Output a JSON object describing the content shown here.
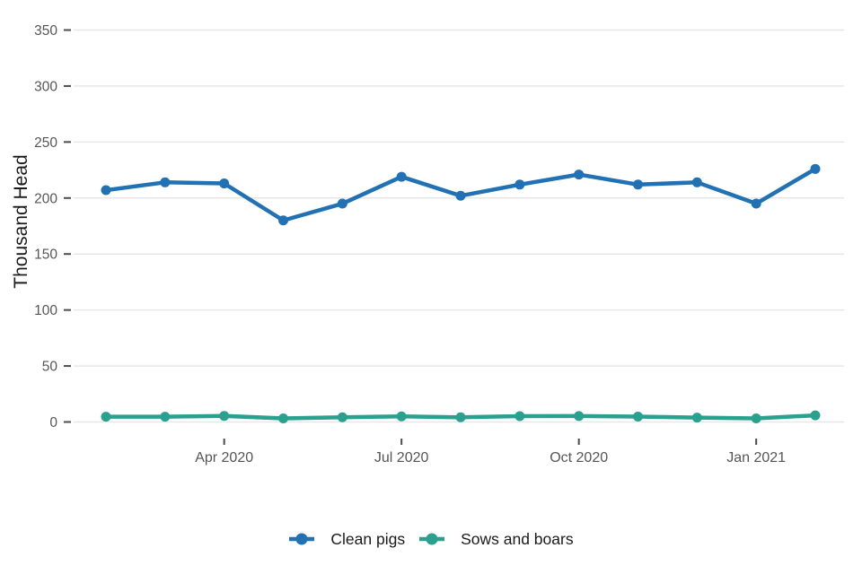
{
  "chart_data": {
    "type": "line",
    "title": "",
    "xlabel": "",
    "ylabel": "Thousand Head",
    "ylim": [
      0,
      350
    ],
    "yticks": [
      0,
      50,
      100,
      150,
      200,
      250,
      300,
      350
    ],
    "grid": "horizontal-major",
    "legend_position": "bottom",
    "background_color": "#ffffff",
    "gridline_color": "#e7e7e7",
    "tick_color": "#4d4d4d",
    "axis_text_color": "#555555",
    "text_color": "#1a1a1a",
    "categories": [
      "Feb 2020",
      "Mar 2020",
      "Apr 2020",
      "May 2020",
      "Jun 2020",
      "Jul 2020",
      "Aug 2020",
      "Sep 2020",
      "Oct 2020",
      "Nov 2020",
      "Dec 2020",
      "Jan 2021",
      "Feb 2021"
    ],
    "xticks": [
      {
        "index": 2,
        "label": "Apr 2020"
      },
      {
        "index": 5,
        "label": "Jul 2020"
      },
      {
        "index": 8,
        "label": "Oct 2020"
      },
      {
        "index": 11,
        "label": "Jan 2021"
      }
    ],
    "series": [
      {
        "name": "Clean pigs",
        "color": "#2171b5",
        "values": [
          207,
          214,
          213,
          180,
          195,
          219,
          202,
          212,
          221,
          212,
          214,
          195,
          226
        ]
      },
      {
        "name": "Sows and boars",
        "color": "#2aa08f",
        "values": [
          4.7,
          4.7,
          5.4,
          3.2,
          4.2,
          5.0,
          4.2,
          5.2,
          5.3,
          4.8,
          3.9,
          3.2,
          5.9
        ]
      }
    ]
  }
}
